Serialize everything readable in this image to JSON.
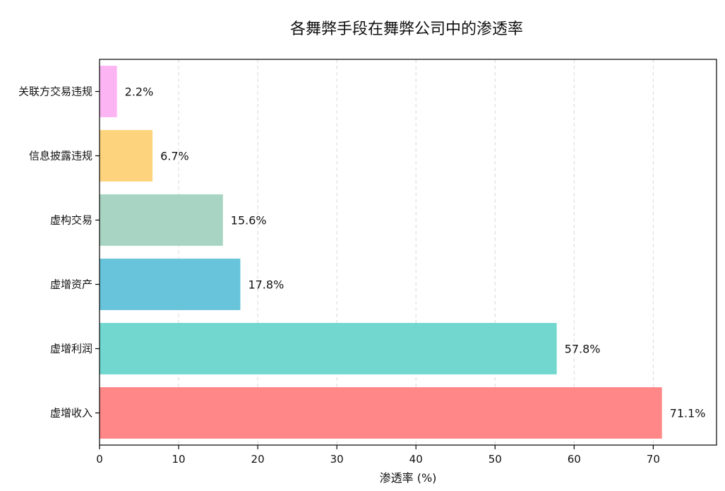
{
  "chart_data": {
    "type": "bar",
    "orientation": "horizontal",
    "title": "各舞弊手段在舞弊公司中的渗透率",
    "xlabel": "渗透率 (%)",
    "ylabel": "",
    "categories": [
      "虚增收入",
      "虚增利润",
      "虚增资产",
      "虚构交易",
      "信息披露违规",
      "关联方交易违规"
    ],
    "values": [
      71.1,
      57.8,
      17.8,
      15.6,
      6.7,
      2.2
    ],
    "value_labels": [
      "71.1%",
      "57.8%",
      "17.8%",
      "15.6%",
      "6.7%",
      "2.2%"
    ],
    "bar_colors": [
      "#ff8787",
      "#72d8cf",
      "#67c4da",
      "#a8d5c3",
      "#fdd47d",
      "#fdb4f3"
    ],
    "xlim": [
      0,
      78
    ],
    "xticks": [
      0,
      10,
      20,
      30,
      40,
      50,
      60,
      70
    ],
    "xtick_labels": [
      "0",
      "10",
      "20",
      "30",
      "40",
      "50",
      "60",
      "70"
    ],
    "grid": "x-dashed",
    "legend": "none"
  }
}
